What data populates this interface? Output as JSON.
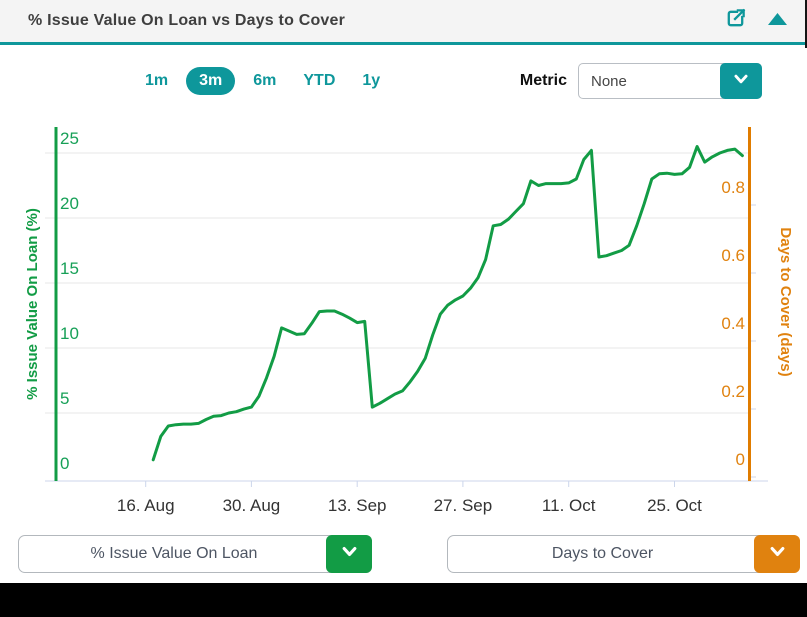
{
  "header": {
    "title": "% Issue Value On Loan vs Days to Cover"
  },
  "controls": {
    "ranges": [
      {
        "label": "1m",
        "selected": false
      },
      {
        "label": "3m",
        "selected": true
      },
      {
        "label": "6m",
        "selected": false
      },
      {
        "label": "YTD",
        "selected": false
      },
      {
        "label": "1y",
        "selected": false
      }
    ],
    "metric_label": "Metric",
    "metric_value": "None"
  },
  "footer": {
    "left_series_selector": "% Issue Value On Loan",
    "right_series_selector": "Days to Cover"
  },
  "colors": {
    "teal_accent": "#0e979b",
    "green_series": "#129c45",
    "green_axis_label": "#17a057",
    "orange_series": "#e0820f",
    "orange_axis_line": "#e07c00",
    "gridline": "#e7e7e7",
    "x_axis_line": "#ccd6eb",
    "x_label_text": "#333333",
    "header_text": "#3f3f3f"
  },
  "chart_data": {
    "type": "line",
    "title": "% Issue Value On Loan vs Days to Cover",
    "grid": true,
    "legend": "none",
    "x_axis": {
      "tick_labels": [
        "16. Aug",
        "30. Aug",
        "13. Sep",
        "27. Sep",
        "11. Oct",
        "25. Oct"
      ],
      "visible_range": [
        "Aug 4",
        "Nov 3"
      ]
    },
    "left_axis": {
      "title": "% Issue Value On Loan (%)",
      "ticks": [
        0,
        5,
        10,
        15,
        20,
        25
      ],
      "min": 0
    },
    "right_axis": {
      "title": "Days to Cover (days)",
      "ticks": [
        0,
        0.2,
        0.4,
        0.6,
        0.8
      ],
      "min": 0
    },
    "series": [
      {
        "name": "% Issue Value On Loan",
        "axis": "left",
        "points": [
          [
            "Aug 17",
            1.4
          ],
          [
            "Aug 18",
            3.2
          ],
          [
            "Aug 19",
            4.0
          ],
          [
            "Aug 20",
            4.1
          ],
          [
            "Aug 21",
            4.15
          ],
          [
            "Aug 22",
            4.15
          ],
          [
            "Aug 23",
            4.2
          ],
          [
            "Aug 24",
            4.5
          ],
          [
            "Aug 25",
            4.75
          ],
          [
            "Aug 26",
            4.8
          ],
          [
            "Aug 27",
            5.0
          ],
          [
            "Aug 28",
            5.1
          ],
          [
            "Aug 29",
            5.3
          ],
          [
            "Aug 30",
            5.45
          ],
          [
            "Aug 31",
            6.3
          ],
          [
            "Sep 1",
            7.7
          ],
          [
            "Sep 2",
            9.35
          ],
          [
            "Sep 3",
            11.55
          ],
          [
            "Sep 4",
            11.3
          ],
          [
            "Sep 5",
            11.05
          ],
          [
            "Sep 6",
            11.1
          ],
          [
            "Sep 7",
            11.9
          ],
          [
            "Sep 8",
            12.8
          ],
          [
            "Sep 9",
            12.85
          ],
          [
            "Sep 10",
            12.85
          ],
          [
            "Sep 11",
            12.6
          ],
          [
            "Sep 12",
            12.3
          ],
          [
            "Sep 13",
            11.95
          ],
          [
            "Sep 14",
            12.05
          ],
          [
            "Sep 15",
            5.45
          ],
          [
            "Sep 16",
            5.75
          ],
          [
            "Sep 17",
            6.1
          ],
          [
            "Sep 18",
            6.45
          ],
          [
            "Sep 19",
            6.7
          ],
          [
            "Sep 20",
            7.4
          ],
          [
            "Sep 21",
            8.2
          ],
          [
            "Sep 22",
            9.2
          ],
          [
            "Sep 23",
            11.0
          ],
          [
            "Sep 24",
            12.6
          ],
          [
            "Sep 25",
            13.3
          ],
          [
            "Sep 26",
            13.7
          ],
          [
            "Sep 27",
            14.0
          ],
          [
            "Sep 28",
            14.6
          ],
          [
            "Sep 29",
            15.4
          ],
          [
            "Sep 30",
            16.8
          ],
          [
            "Oct 1",
            19.4
          ],
          [
            "Oct 2",
            19.5
          ],
          [
            "Oct 3",
            19.9
          ],
          [
            "Oct 4",
            20.5
          ],
          [
            "Oct 5",
            21.1
          ],
          [
            "Oct 6",
            22.85
          ],
          [
            "Oct 7",
            22.5
          ],
          [
            "Oct 8",
            22.65
          ],
          [
            "Oct 9",
            22.65
          ],
          [
            "Oct 10",
            22.65
          ],
          [
            "Oct 11",
            22.7
          ],
          [
            "Oct 12",
            23.0
          ],
          [
            "Oct 13",
            24.5
          ],
          [
            "Oct 14",
            25.2
          ],
          [
            "Oct 15",
            17.0
          ],
          [
            "Oct 16",
            17.1
          ],
          [
            "Oct 17",
            17.3
          ],
          [
            "Oct 18",
            17.5
          ],
          [
            "Oct 19",
            17.9
          ],
          [
            "Oct 20",
            19.4
          ],
          [
            "Oct 21",
            21.1
          ],
          [
            "Oct 22",
            23.0
          ],
          [
            "Oct 23",
            23.4
          ],
          [
            "Oct 24",
            23.45
          ],
          [
            "Oct 25",
            23.35
          ],
          [
            "Oct 26",
            23.4
          ],
          [
            "Oct 27",
            23.9
          ],
          [
            "Oct 28",
            25.5
          ],
          [
            "Oct 29",
            24.3
          ],
          [
            "Oct 30",
            24.7
          ],
          [
            "Oct 31",
            25.0
          ],
          [
            "Nov 1",
            25.2
          ],
          [
            "Nov 2",
            25.3
          ],
          [
            "Nov 3",
            24.8
          ]
        ]
      },
      {
        "name": "Days to Cover",
        "axis": "right",
        "points": [],
        "note": "no separately visible line in screenshot (coincides with left series)"
      }
    ]
  }
}
